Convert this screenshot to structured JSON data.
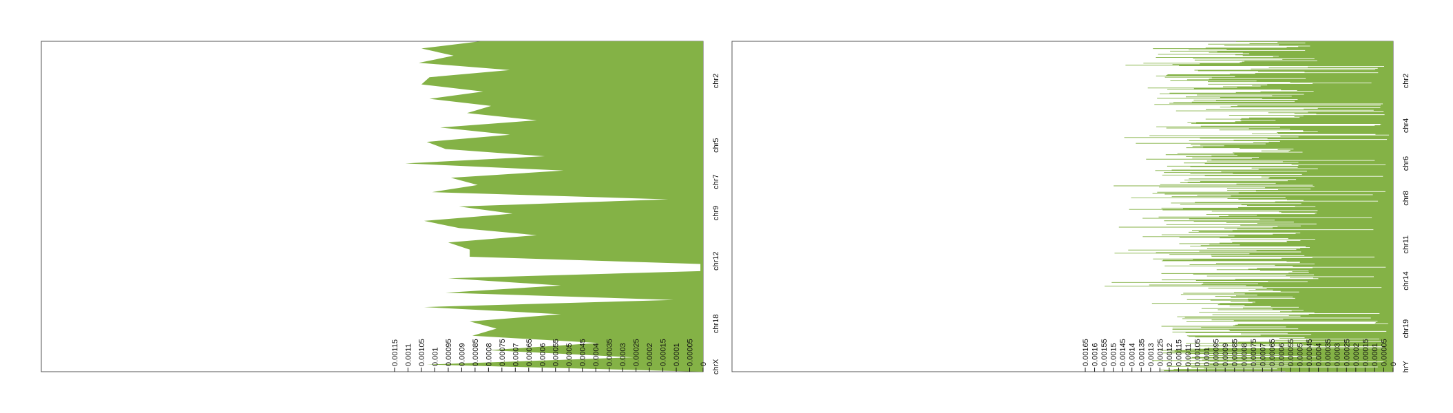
{
  "chart_data": [
    {
      "type": "area",
      "orientation": "horizontal",
      "fill_color": "#84b246",
      "background": "#ffffff",
      "value_axis": {
        "ticks": [
          "0.00115",
          "0.0011",
          "0.00105",
          "0.001",
          "0.00095",
          "0.0009",
          "0.00085",
          "0.0008",
          "0.00075",
          "0.0007",
          "0.00065",
          "0.0006",
          "0.00055",
          "0.0005",
          "0.00045",
          "0.0004",
          "0.00035",
          "0.0003",
          "0.00025",
          "0.0002",
          "0.00015",
          "0.0001",
          "0.00005",
          "0"
        ],
        "range": [
          0.00115,
          0
        ],
        "tick_label_rotation": -90
      },
      "chromosome_labels": [
        "chr2",
        "chr5",
        "chr7",
        "chr9",
        "chr12",
        "chr18",
        "chrX"
      ],
      "values": [
        0.00083,
        0.00105,
        0.00093,
        0.00106,
        0.00072,
        0.00102,
        0.00105,
        0.00082,
        0.00102,
        0.00079,
        0.00088,
        0.00062,
        0.00098,
        0.00072,
        0.00103,
        0.00096,
        0.00059,
        0.00111,
        0.00052,
        0.00094,
        0.00084,
        0.00101,
        0.00013,
        0.00091,
        0.00071,
        0.00104,
        0.00091,
        0.00062,
        0.00095,
        0.00087,
        0.00087,
        1e-05,
        1e-05,
        0.00095,
        0.00053,
        0.00096,
        0.00011,
        0.00104,
        0.00053,
        0.00087,
        0.00077,
        0.00086,
        0.00039,
        0.0008,
        0.00026,
        0.00103,
        1e-05
      ]
    },
    {
      "type": "area",
      "orientation": "horizontal",
      "fill_color": "#84b246",
      "background": "#ffffff",
      "value_axis": {
        "ticks": [
          "0.00165",
          "0.0016",
          "0.00155",
          "0.0015",
          "0.00145",
          "0.0014",
          "0.00135",
          "0.0013",
          "0.00125",
          "0.0012",
          "0.00115",
          "0.0011",
          "0.00105",
          "0.001",
          "0.00095",
          "0.0009",
          "0.00085",
          "0.0008",
          "0.00075",
          "0.0007",
          "0.00065",
          "0.0006",
          "0.00055",
          "0.0005",
          "0.00045",
          "0.0004",
          "0.00035",
          "0.0003",
          "0.00025",
          "0.0002",
          "0.00015",
          "0.0001",
          "0.00005",
          "0"
        ],
        "range": [
          0.00165,
          0
        ],
        "tick_label_rotation": -90
      },
      "chromosome_labels": [
        "chr2",
        "chr4",
        "chr6",
        "chr8",
        "chr11",
        "chr14",
        "chr19",
        "hrY"
      ],
      "approx_bins": 520,
      "value_range_observed": [
        1e-05,
        0.00155
      ]
    }
  ]
}
